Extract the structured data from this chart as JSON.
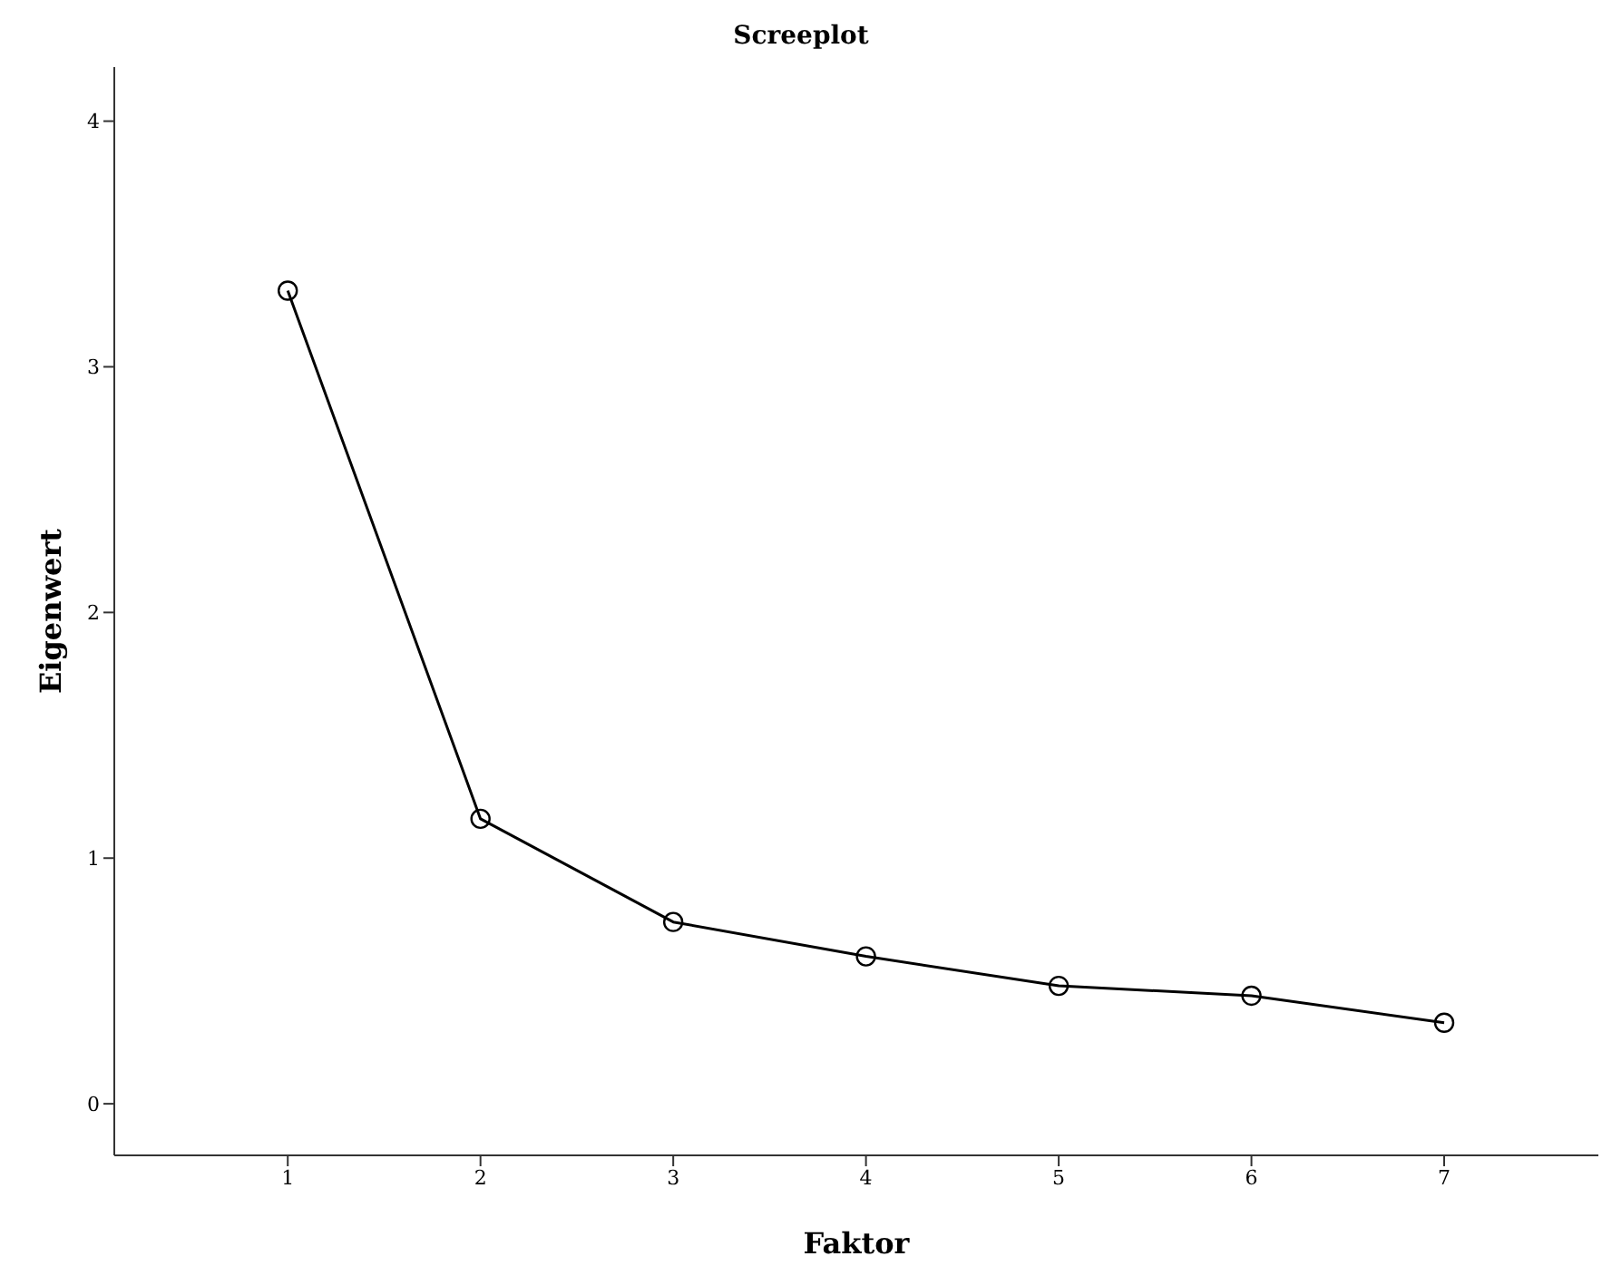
{
  "chart_data": {
    "type": "line",
    "title": "Screeplot",
    "xlabel": "Faktor",
    "ylabel": "Eigenwert",
    "x": [
      1,
      2,
      3,
      4,
      5,
      6,
      7
    ],
    "series": [
      {
        "color": "#000000",
        "values": [
          3.31,
          1.16,
          0.74,
          0.6,
          0.48,
          0.44,
          0.33
        ]
      }
    ],
    "xlim": [
      0.1,
      7.8
    ],
    "xticks": [
      1,
      2,
      3,
      4,
      5,
      6,
      7
    ],
    "ylim": [
      -0.21,
      4.22
    ],
    "yticks": [
      0,
      1,
      2,
      3,
      4
    ],
    "marker": "circle",
    "line_style": "solid",
    "grid": false,
    "legend": false
  }
}
